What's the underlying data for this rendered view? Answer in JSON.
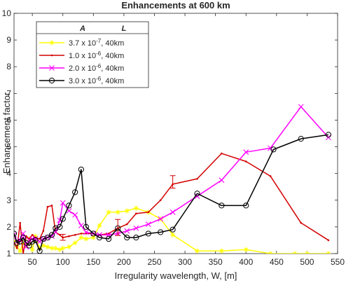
{
  "chart_data": {
    "type": "line",
    "title": "Enhancements at 600 km",
    "xlabel": "Irregularity wavelength, W, [m]",
    "ylabel": "Enhancement factor",
    "xlim": [
      20,
      550
    ],
    "ylim": [
      1,
      10
    ],
    "xticks": [
      50,
      100,
      150,
      200,
      250,
      300,
      350,
      400,
      450,
      500,
      550
    ],
    "yticks": [
      1,
      2,
      3,
      4,
      5,
      6,
      7,
      8,
      9,
      10
    ],
    "grid": false,
    "legend": {
      "placement": "top-left",
      "header": [
        "A",
        "L"
      ]
    },
    "series": [
      {
        "name": "3.7 x 10^-7, 40km",
        "label_parts": {
          "mantissa": "3.7 x 10",
          "exp": "-7",
          "tail": ",  40km"
        },
        "color": "#ffff00",
        "marker": "asterisk",
        "x": [
          20,
          25,
          30,
          35,
          40,
          45,
          50,
          55,
          62,
          68,
          75,
          82,
          88,
          95,
          100,
          110,
          120,
          130,
          138,
          150,
          160,
          175,
          190,
          205,
          220,
          240,
          260,
          280,
          320,
          360,
          400,
          440,
          480,
          500,
          535
        ],
        "y": [
          1.45,
          1.25,
          1.1,
          1.4,
          1.3,
          1.55,
          1.15,
          1.65,
          1.2,
          1.3,
          1.25,
          1.2,
          1.2,
          1.15,
          1.2,
          1.25,
          1.4,
          1.6,
          1.55,
          1.6,
          2.05,
          2.55,
          2.55,
          2.6,
          2.7,
          2.55,
          2.3,
          1.7,
          1.1,
          1.1,
          1.15,
          1.0,
          1.0,
          1.0,
          1.0
        ]
      },
      {
        "name": "1.0 x 10^-6, 40km",
        "label_parts": {
          "mantissa": "1.0 x 10",
          "exp": "-6",
          "tail": ",  40km"
        },
        "color": "#d40000",
        "marker": "point",
        "x": [
          20,
          25,
          30,
          35,
          40,
          45,
          50,
          55,
          62,
          68,
          75,
          82,
          88,
          95,
          100,
          110,
          120,
          130,
          138,
          150,
          160,
          175,
          190,
          205,
          220,
          240,
          260,
          280,
          320,
          360,
          400,
          440,
          490,
          535
        ],
        "y": [
          1.4,
          1.2,
          2.15,
          1.0,
          1.65,
          1.55,
          1.7,
          1.6,
          1.55,
          1.85,
          2.75,
          2.8,
          1.8,
          1.7,
          1.6,
          1.65,
          1.7,
          1.75,
          1.75,
          1.75,
          1.7,
          1.75,
          1.95,
          2.1,
          2.5,
          2.55,
          3.0,
          3.6,
          3.8,
          4.75,
          4.45,
          3.9,
          2.15,
          1.5
        ]
      },
      {
        "name": "2.0 x 10^-6, 40km",
        "label_parts": {
          "mantissa": "2.0 x 10",
          "exp": "-6",
          "tail": ",  40km"
        },
        "color": "#ff00ff",
        "marker": "x",
        "x": [
          20,
          25,
          30,
          35,
          40,
          45,
          50,
          55,
          62,
          68,
          75,
          82,
          88,
          95,
          100,
          110,
          120,
          130,
          138,
          150,
          160,
          175,
          190,
          205,
          220,
          240,
          260,
          280,
          320,
          360,
          400,
          440,
          490,
          535
        ],
        "y": [
          1.7,
          1.45,
          1.5,
          1.75,
          1.25,
          1.5,
          1.55,
          1.55,
          1.45,
          1.55,
          1.6,
          1.65,
          1.8,
          2.25,
          2.9,
          2.6,
          2.45,
          2.05,
          1.8,
          1.75,
          1.7,
          1.7,
          1.75,
          1.85,
          1.95,
          2.1,
          2.3,
          2.55,
          3.15,
          3.75,
          4.8,
          4.95,
          6.5,
          5.35
        ]
      },
      {
        "name": "3.0 x 10^-6, 40km",
        "label_parts": {
          "mantissa": "3.0 x 10",
          "exp": "-6",
          "tail": ",  40km"
        },
        "color": "#000000",
        "marker": "circle",
        "x": [
          20,
          25,
          30,
          35,
          40,
          45,
          50,
          55,
          62,
          68,
          75,
          82,
          88,
          95,
          100,
          110,
          120,
          130,
          138,
          150,
          160,
          175,
          190,
          205,
          220,
          240,
          260,
          280,
          320,
          360,
          400,
          445,
          490,
          535
        ],
        "y": [
          1.75,
          1.4,
          1.45,
          1.6,
          1.4,
          1.3,
          1.45,
          1.5,
          1.1,
          1.55,
          1.6,
          1.7,
          1.95,
          2.0,
          2.3,
          2.8,
          3.3,
          4.15,
          2.0,
          1.75,
          1.6,
          1.55,
          1.95,
          1.6,
          1.6,
          1.75,
          1.8,
          1.9,
          3.25,
          2.8,
          2.8,
          4.9,
          5.3,
          5.45
        ]
      }
    ],
    "error_bars": [
      {
        "x": 100,
        "y": 1.6,
        "low": 1.5,
        "high": 1.72,
        "color": "#d40000"
      },
      {
        "x": 190,
        "y": 1.95,
        "low": 1.68,
        "high": 2.28,
        "color": "#d40000"
      },
      {
        "x": 280,
        "y": 3.6,
        "low": 3.45,
        "high": 3.92,
        "color": "#d40000"
      }
    ]
  }
}
